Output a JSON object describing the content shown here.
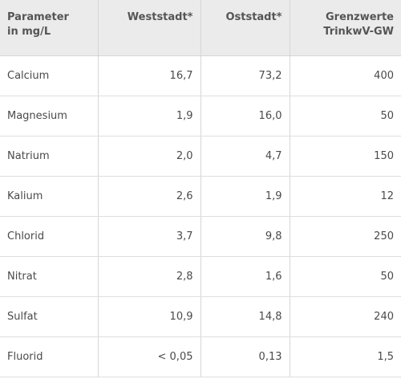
{
  "table": {
    "headers": {
      "parameter": [
        "Parameter",
        "in mg/L"
      ],
      "weststadt": "Weststadt*",
      "oststadt": "Oststadt*",
      "grenzwerte": [
        "Grenzwerte",
        "TrinkwV-GW"
      ]
    },
    "rows": [
      {
        "name": "Calcium",
        "weststadt": "16,7",
        "oststadt": "73,2",
        "grenzwert": "400"
      },
      {
        "name": "Magnesium",
        "weststadt": "1,9",
        "oststadt": "16,0",
        "grenzwert": "50"
      },
      {
        "name": "Natrium",
        "weststadt": "2,0",
        "oststadt": "4,7",
        "grenzwert": "150"
      },
      {
        "name": "Kalium",
        "weststadt": "2,6",
        "oststadt": "1,9",
        "grenzwert": "12"
      },
      {
        "name": "Chlorid",
        "weststadt": "3,7",
        "oststadt": "9,8",
        "grenzwert": "250"
      },
      {
        "name": "Nitrat",
        "weststadt": "2,8",
        "oststadt": "1,6",
        "grenzwert": "50"
      },
      {
        "name": "Sulfat",
        "weststadt": "10,9",
        "oststadt": "14,8",
        "grenzwert": "240"
      },
      {
        "name": "Fluorid",
        "weststadt": "< 0,05",
        "oststadt": "0,13",
        "grenzwert": "1,5"
      }
    ]
  }
}
